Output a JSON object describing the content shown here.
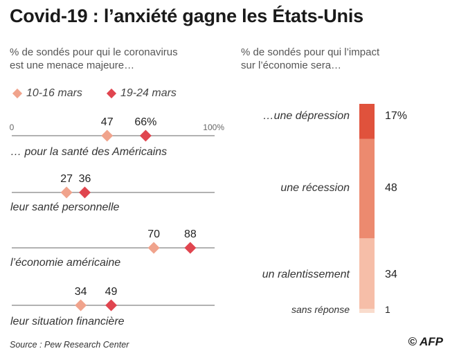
{
  "title": "Covid-19 : l’anxiété gagne les États-Unis",
  "left_intro": [
    "% de sondés pour qui le coronavirus",
    "est une menace majeure…"
  ],
  "right_intro": [
    "% de sondés pour qui l’impact",
    "sur l’économie sera…"
  ],
  "legend": [
    {
      "label": "10-16 mars",
      "color": "#f0a38c"
    },
    {
      "label": "19-24 mars",
      "color": "#e0454f"
    }
  ],
  "source": "Source : Pew Research Center",
  "logo": "© AFP",
  "chart_data": [
    {
      "type": "dot",
      "scale_labels": {
        "min": "0",
        "max": "100%"
      },
      "xlim": [
        0,
        100
      ],
      "series": [
        {
          "name": "10-16 mars"
        },
        {
          "name": "19-24 mars"
        }
      ],
      "rows": [
        {
          "caption": "… pour la santé des Américains",
          "values": [
            47,
            66
          ],
          "value_labels": [
            "47",
            "66%"
          ]
        },
        {
          "caption": "leur santé personnelle",
          "values": [
            27,
            36
          ],
          "value_labels": [
            "27",
            "36"
          ]
        },
        {
          "caption": "l’économie américaine",
          "values": [
            70,
            88
          ],
          "value_labels": [
            "70",
            "88"
          ]
        },
        {
          "caption": "leur situation financière",
          "values": [
            34,
            49
          ],
          "value_labels": [
            "34",
            "49"
          ]
        }
      ]
    },
    {
      "type": "stacked-bar",
      "segments": [
        {
          "label": "…une dépression",
          "value": 17,
          "value_label": "17%",
          "color": "#e0523c"
        },
        {
          "label": "une récession",
          "value": 48,
          "value_label": "48",
          "color": "#ec8a6f"
        },
        {
          "label": "un ralentissement",
          "value": 34,
          "value_label": "34",
          "color": "#f6bea8"
        },
        {
          "label": "sans réponse",
          "value": 1,
          "value_label": "1",
          "color": "#f9dccd"
        }
      ]
    }
  ]
}
